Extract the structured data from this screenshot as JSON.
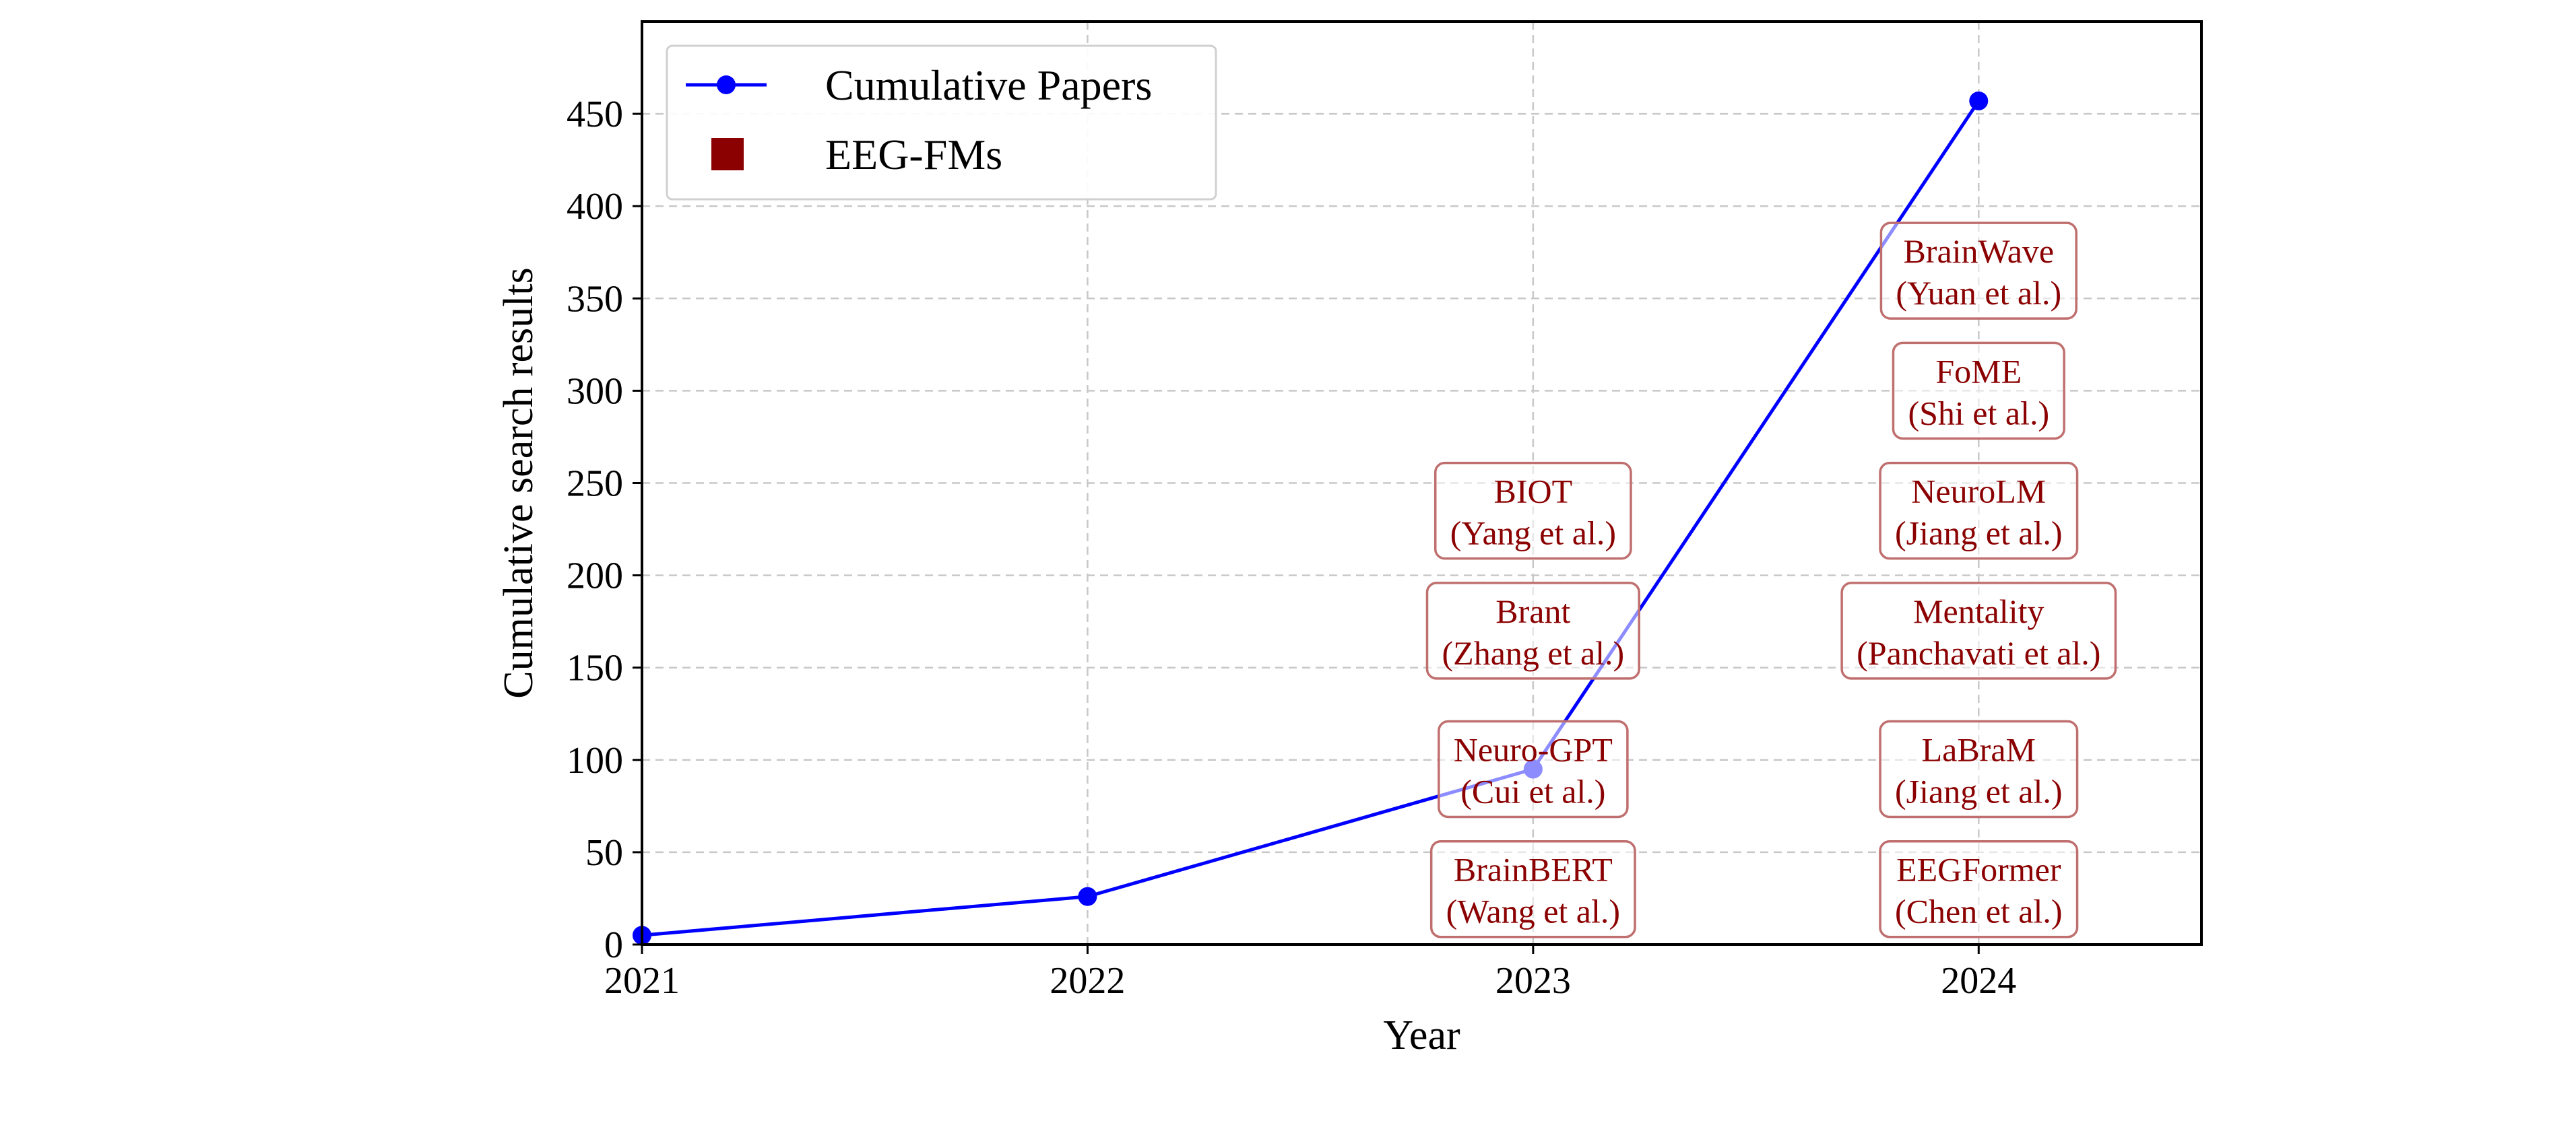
{
  "chart_data": {
    "type": "line",
    "xlabel": "Year",
    "ylabel": "Cumulative search results",
    "xlim": [
      2021,
      2024.5
    ],
    "ylim": [
      0,
      500
    ],
    "x_ticks": [
      "2021",
      "2022",
      "2023",
      "2024"
    ],
    "y_ticks": [
      "0",
      "50",
      "100",
      "150",
      "200",
      "250",
      "300",
      "350",
      "400",
      "450"
    ],
    "grid": true,
    "legend_position": "top-left",
    "series": [
      {
        "name": "Cumulative Papers",
        "color": "#0000ff",
        "marker": "circle",
        "x": [
          2021,
          2022,
          2023,
          2024
        ],
        "y": [
          5,
          26,
          95,
          457
        ]
      }
    ],
    "legend": [
      {
        "label": "Cumulative Papers",
        "kind": "line-marker",
        "color": "#0000ff"
      },
      {
        "label": "EEG-FMs",
        "kind": "square",
        "color": "#8b0000"
      }
    ],
    "annotations": [
      {
        "x": 2023,
        "y": 30,
        "line1": "BrainBERT",
        "line2": "(Wang et al.)"
      },
      {
        "x": 2023,
        "y": 95,
        "line1": "Neuro-GPT",
        "line2": "(Cui et al.)"
      },
      {
        "x": 2023,
        "y": 170,
        "line1": "Brant",
        "line2": "(Zhang et al.)"
      },
      {
        "x": 2023,
        "y": 235,
        "line1": "BIOT",
        "line2": "(Yang et al.)"
      },
      {
        "x": 2024,
        "y": 30,
        "line1": "EEGFormer",
        "line2": "(Chen et al.)"
      },
      {
        "x": 2024,
        "y": 95,
        "line1": "LaBraM",
        "line2": "(Jiang et al.)"
      },
      {
        "x": 2024,
        "y": 170,
        "line1": "Mentality",
        "line2": "(Panchavati et al.)"
      },
      {
        "x": 2024,
        "y": 235,
        "line1": "NeuroLM",
        "line2": "(Jiang et al.)"
      },
      {
        "x": 2024,
        "y": 300,
        "line1": "FoME",
        "line2": "(Shi et al.)"
      },
      {
        "x": 2024,
        "y": 365,
        "line1": "BrainWave",
        "line2": "(Yuan et al.)"
      }
    ],
    "annotation_color": "#8b0000"
  }
}
